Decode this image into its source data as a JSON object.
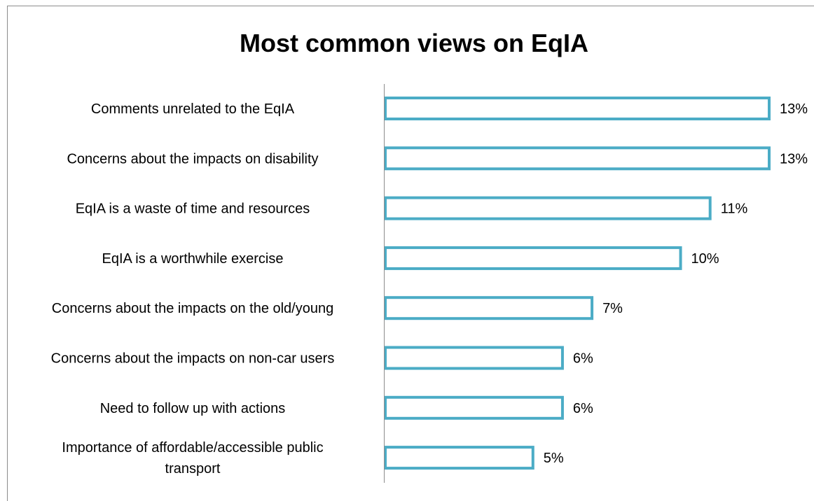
{
  "chart_data": {
    "type": "bar",
    "orientation": "horizontal",
    "title": "Most common views on EqIA",
    "categories": [
      "Comments unrelated to the EqIA",
      "Concerns about the impacts on disability",
      "EqIA is a waste of time and resources",
      "EqIA is a worthwhile exercise",
      "Concerns about the impacts on the old/young",
      "Concerns about the impacts on non-car users",
      "Need to follow up with actions",
      "Importance of affordable/accessible public transport"
    ],
    "values": [
      13,
      13,
      11,
      10,
      7,
      6,
      6,
      5
    ],
    "data_labels": [
      "13%",
      "13%",
      "11%",
      "10%",
      "7%",
      "6%",
      "6%",
      "5%"
    ],
    "unit": "%",
    "xlim": [
      0,
      13
    ],
    "grid": false,
    "legend": "none",
    "bar_outline_color": "#4BACC6",
    "bar_fill_color": "#ffffff"
  }
}
